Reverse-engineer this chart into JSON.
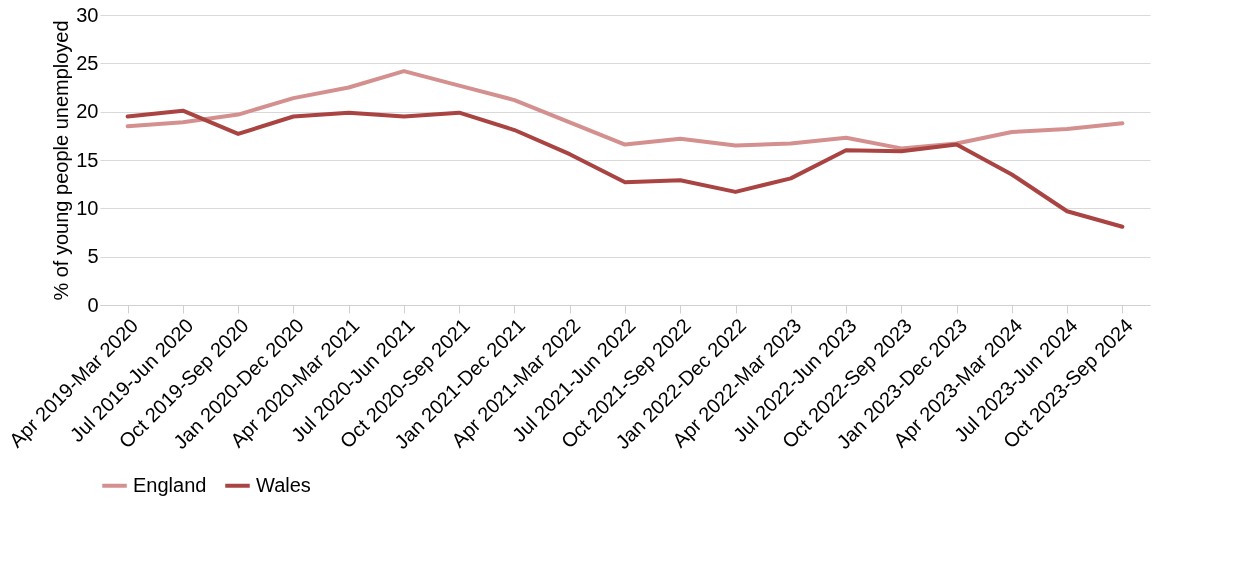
{
  "chart_data": {
    "type": "line",
    "ylabel": "% of young people unemployed",
    "categories": [
      "Apr 2019-Mar 2020",
      "Jul 2019-Jun 2020",
      "Oct 2019-Sep 2020",
      "Jan 2020-Dec 2020",
      "Apr 2020-Mar 2021",
      "Jul 2020-Jun 2021",
      "Oct 2020-Sep 2021",
      "Jan 2021-Dec 2021",
      "Apr 2021-Mar 2022",
      "Jul 2021-Jun 2022",
      "Oct 2021-Sep 2022",
      "Jan 2022-Dec 2022",
      "Apr 2022-Mar 2023",
      "Jul 2022-Jun 2023",
      "Oct 2022-Sep 2023",
      "Jan 2023-Dec 2023",
      "Apr 2023-Mar 2024",
      "Jul 2023-Jun 2024",
      "Oct 2023-Sep 2024"
    ],
    "series": [
      {
        "name": "England",
        "color": "#d4908f",
        "values": [
          18.5,
          18.9,
          19.7,
          21.4,
          22.5,
          24.2,
          22.7,
          21.2,
          18.9,
          16.6,
          17.2,
          16.5,
          16.7,
          17.3,
          16.2,
          16.7,
          17.9,
          18.2,
          18.8
        ]
      },
      {
        "name": "Wales",
        "color": "#a94442",
        "values": [
          19.5,
          20.1,
          17.7,
          19.5,
          19.9,
          19.5,
          19.9,
          18.1,
          15.6,
          12.7,
          12.9,
          11.7,
          13.1,
          16.0,
          15.9,
          16.6,
          13.5,
          9.7,
          8.1
        ]
      }
    ],
    "ylim": [
      0,
      30
    ],
    "yticks": [
      0,
      5,
      10,
      15,
      20,
      25,
      30
    ],
    "grid": "y",
    "legend": "bottom",
    "marker": "none",
    "line_style": "solid"
  }
}
